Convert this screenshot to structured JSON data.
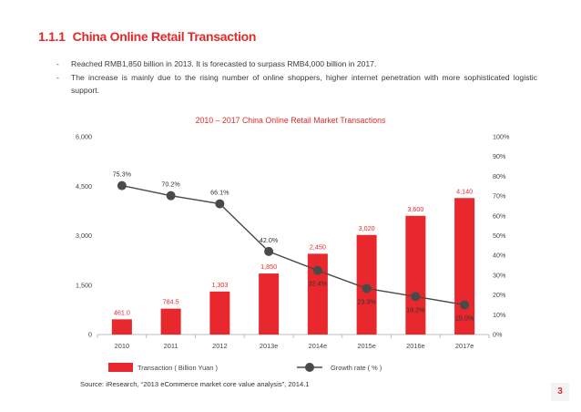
{
  "header": {
    "section_number": "1.1.1",
    "title": "China Online Retail Transaction"
  },
  "bullets": [
    "Reached RMB1,850 billion in 2013. It is forecasted to surpass RMB4,000 billion in 2017.",
    "The increase is mainly due to the rising number of online shoppers, higher internet penetration with more sophisticated logistic support."
  ],
  "bullet_marker": "-",
  "chart_data": {
    "type": "bar",
    "title": "2010 – 2017 China Online Retail Market Transactions",
    "categories": [
      "2010",
      "2011",
      "2012",
      "2013e",
      "2014e",
      "2015e",
      "2016e",
      "2017e"
    ],
    "series": [
      {
        "name": "Transaction ( Billion Yuan )",
        "type": "bar",
        "axis": "left",
        "values": [
          461.0,
          784.5,
          1303,
          1850,
          2450,
          3020,
          3600,
          4140
        ],
        "labels": [
          "461.0",
          "784.5",
          "1,303",
          "1,850",
          "2,450",
          "3,020",
          "3,600",
          "4,140"
        ]
      },
      {
        "name": "Growth rate ( % )",
        "type": "line",
        "axis": "right",
        "values": [
          75.3,
          70.2,
          66.1,
          42.0,
          32.4,
          23.3,
          19.2,
          15.0
        ],
        "labels": [
          "75.3%",
          "70.2%",
          "66.1%",
          "42.0%",
          "32.4%",
          "23.3%",
          "19.2%",
          "15.0%"
        ]
      }
    ],
    "left_axis": {
      "ylim": [
        0,
        6000
      ],
      "ticks": [
        "0",
        "1,500",
        "3,000",
        "4,500",
        "6,000"
      ]
    },
    "right_axis": {
      "ylim": [
        0,
        100
      ],
      "ticks": [
        "0%",
        "10%",
        "20%",
        "30%",
        "40%",
        "50%",
        "60%",
        "70%",
        "80%",
        "90%",
        "100%"
      ]
    },
    "legend_position": "bottom",
    "colors": {
      "bar": "#e8282c",
      "line": "#4a4a4a",
      "bar_label": "#e8282c",
      "line_label": "#333333"
    }
  },
  "source": "Source: iResearch, “2013 eCommerce market core value analysis”, 2014.1",
  "page_number": "3",
  "theme": {
    "accent": "#e32a2a"
  }
}
